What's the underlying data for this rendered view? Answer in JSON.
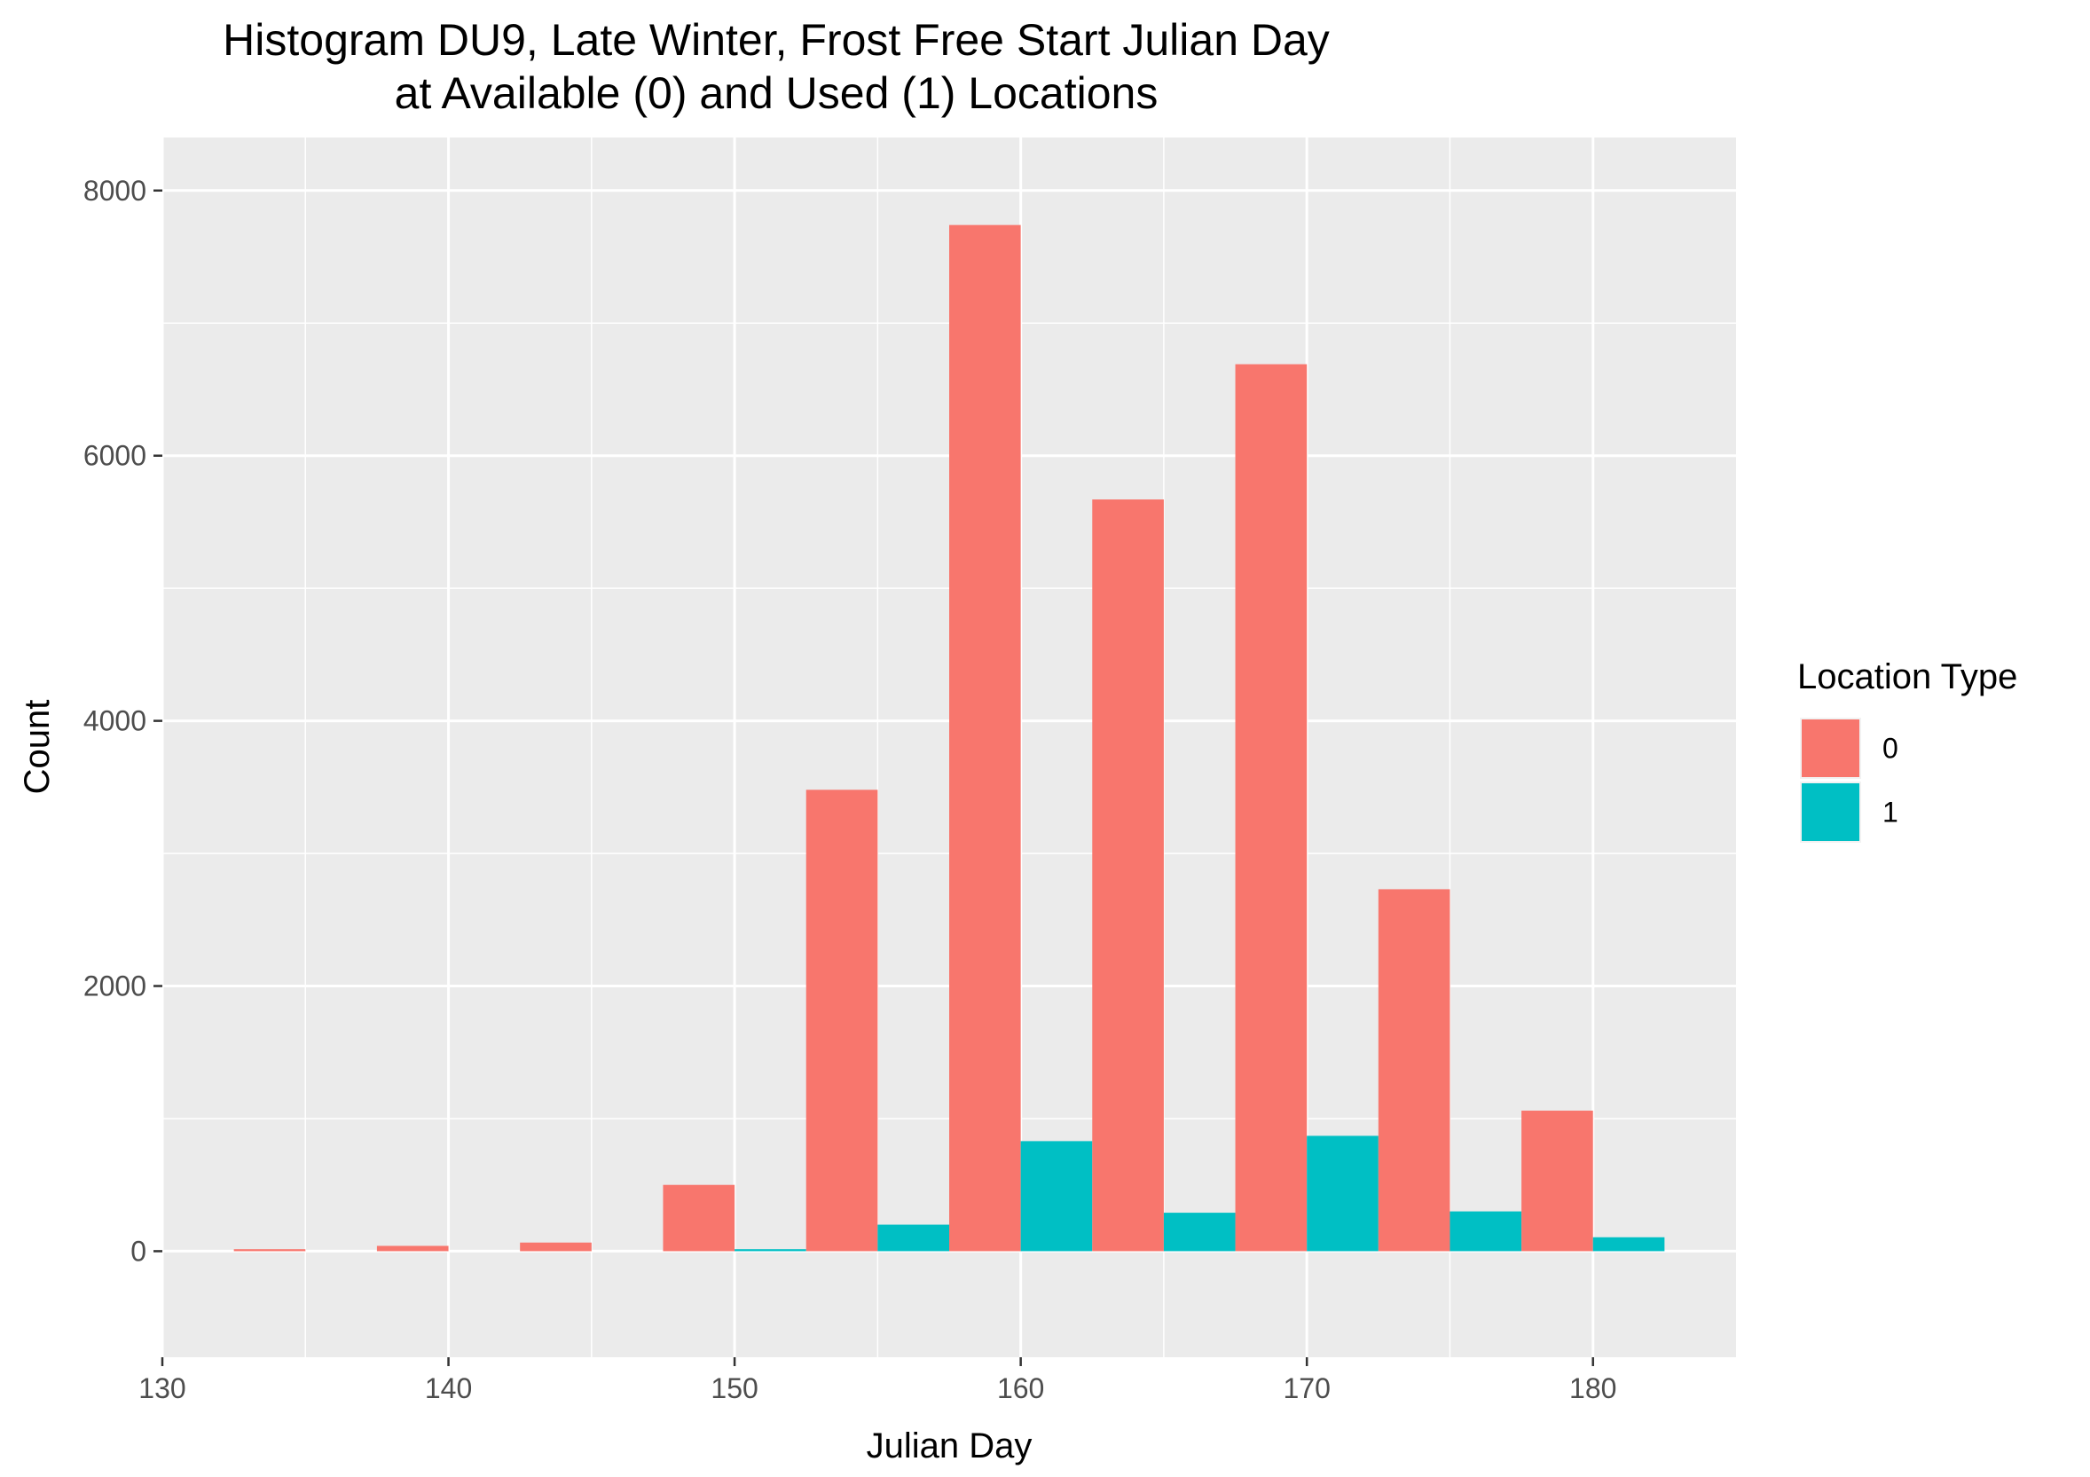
{
  "chart_data": {
    "type": "bar",
    "title_lines": [
      "Histogram DU9, Late Winter, Frost Free Start Julian Day",
      "at Available (0) and Used (1) Locations"
    ],
    "xlabel": "Julian Day",
    "ylabel": "Count",
    "xlim": [
      130,
      185
    ],
    "ylim": [
      -800,
      8400
    ],
    "x_ticks": [
      130,
      140,
      150,
      160,
      170,
      180
    ],
    "x_tick_labels": [
      "130",
      "140",
      "150",
      "160",
      "170",
      "180"
    ],
    "y_ticks": [
      0,
      2000,
      4000,
      6000,
      8000
    ],
    "y_tick_labels": [
      "0",
      "2000",
      "4000",
      "6000",
      "8000"
    ],
    "bin_width": 5,
    "bin_centers": [
      135,
      140,
      145,
      150,
      155,
      160,
      165,
      170,
      175,
      180
    ],
    "dodge": true,
    "grid": true,
    "legend": {
      "title": "Location Type",
      "position": "right"
    },
    "series": [
      {
        "name": "0",
        "color": "#F8766D",
        "values": [
          15,
          40,
          65,
          500,
          3480,
          7740,
          5670,
          6690,
          2730,
          1060
        ]
      },
      {
        "name": "1",
        "color": "#00BFC4",
        "values": [
          0,
          0,
          0,
          15,
          200,
          830,
          290,
          870,
          300,
          105
        ]
      }
    ]
  }
}
